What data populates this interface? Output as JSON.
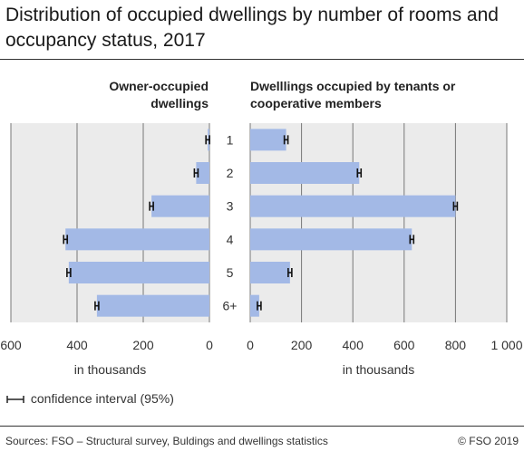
{
  "title": "Distribution of occupied dwellings by number of rooms and occupancy status, 2017",
  "legend_label": "confidence interval (95%)",
  "source": "Sources: FSO – Structural survey, Buldings and dwellings statistics",
  "copyright": "© FSO 2019",
  "colors": {
    "bar": "#a3b9e6",
    "panel_bg": "#ebebeb",
    "grid": "#777777",
    "error_bar": "#111111"
  },
  "chart_data": [
    {
      "type": "bar",
      "orientation": "horizontal",
      "direction": "reversed",
      "title": "Owner-occupied dwellings",
      "xlabel": "in thousands",
      "xlim": [
        0,
        600
      ],
      "ticks": [
        600,
        400,
        200,
        0
      ],
      "tick_labels": [
        "600",
        "400",
        "200",
        "0"
      ],
      "categories": [
        "1",
        "2",
        "3",
        "4",
        "5",
        "6+"
      ],
      "values": [
        5,
        40,
        175,
        435,
        425,
        340
      ],
      "ci_half_width": [
        2,
        3,
        4,
        5,
        5,
        5
      ],
      "grid": true
    },
    {
      "type": "bar",
      "orientation": "horizontal",
      "title": "Dwelllings occupied by tenants or cooperative members",
      "xlabel": "in thousands",
      "xlim": [
        0,
        1000
      ],
      "ticks": [
        0,
        200,
        400,
        600,
        800,
        1000
      ],
      "tick_labels": [
        "0",
        "200",
        "400",
        "600",
        "800",
        "1 000"
      ],
      "categories": [
        "1",
        "2",
        "3",
        "4",
        "5",
        "6+"
      ],
      "values": [
        140,
        425,
        800,
        630,
        155,
        35
      ],
      "ci_half_width": [
        5,
        5,
        6,
        6,
        4,
        3
      ],
      "grid": true
    }
  ]
}
